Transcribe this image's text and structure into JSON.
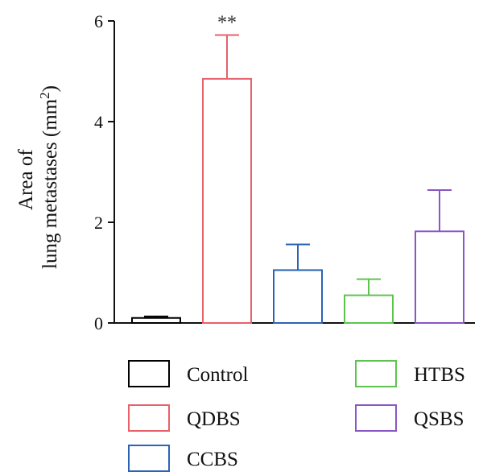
{
  "chart_data": {
    "type": "bar",
    "categories": [
      "Control",
      "QDBS",
      "CCBS",
      "HTBS",
      "QSBS"
    ],
    "values": [
      0.1,
      4.85,
      1.05,
      0.55,
      1.82
    ],
    "errors": [
      0.03,
      0.87,
      0.51,
      0.32,
      0.82
    ],
    "colors": [
      "#000000",
      "#e8606a",
      "#2a64b6",
      "#5cc44e",
      "#8a55c4"
    ],
    "significance": [
      "",
      "**",
      "",
      "",
      ""
    ],
    "ylabel_line1": "Area of",
    "ylabel_line2": "lung metastases (mm",
    "ylabel_sup": "2",
    "ylabel_close": ")",
    "ylim": [
      0,
      6
    ],
    "yticks": [
      0,
      2,
      4,
      6
    ],
    "legend_position": "bottom",
    "legend": [
      {
        "label": "Control"
      },
      {
        "label": "QDBS"
      },
      {
        "label": "CCBS"
      },
      {
        "label": "HTBS"
      },
      {
        "label": "QSBS"
      }
    ]
  }
}
